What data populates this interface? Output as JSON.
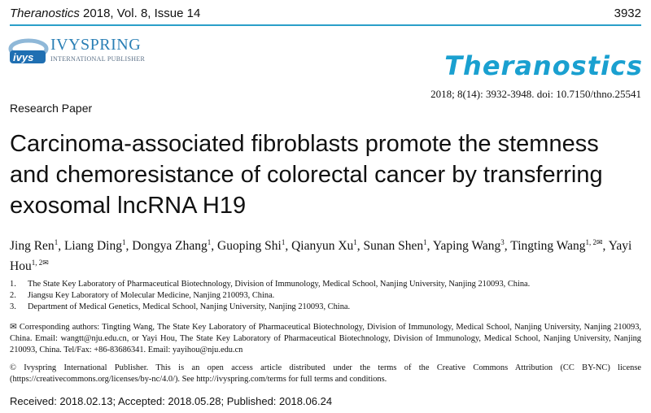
{
  "header": {
    "journal": "Theranostics",
    "issue": "2018, Vol. 8, Issue 14",
    "page": "3932"
  },
  "publisher": {
    "name": "IVYSPRING",
    "subtitle": "INTERNATIONAL PUBLISHER",
    "logo_text": "ivys"
  },
  "journal_logo": "Theranostics",
  "citation": "2018; 8(14): 3932-3948. doi: 10.7150/thno.25541",
  "article_type": "Research Paper",
  "title": "Carcinoma-associated fibroblasts promote the stemness and chemoresistance of colorectal cancer by transferring exosomal lncRNA H19",
  "authors": [
    {
      "name": "Jing Ren",
      "aff": "1"
    },
    {
      "name": "Liang Ding",
      "aff": "1"
    },
    {
      "name": "Dongya Zhang",
      "aff": "1"
    },
    {
      "name": "Guoping Shi",
      "aff": "1"
    },
    {
      "name": "Qianyun Xu",
      "aff": "1"
    },
    {
      "name": "Sunan Shen",
      "aff": "1"
    },
    {
      "name": "Yaping Wang",
      "aff": "3"
    },
    {
      "name": "Tingting Wang",
      "aff": "1, 2✉"
    },
    {
      "name": "Yayi Hou",
      "aff": "1, 2✉"
    }
  ],
  "affiliations": [
    {
      "num": "1.",
      "text": "The State Key Laboratory of Pharmaceutical Biotechnology, Division of Immunology, Medical School, Nanjing University, Nanjing 210093, China."
    },
    {
      "num": "2.",
      "text": "Jiangsu Key Laboratory of Molecular Medicine, Nanjing 210093, China."
    },
    {
      "num": "3.",
      "text": "Department of Medical Genetics, Medical School, Nanjing University, Nanjing 210093, China."
    }
  ],
  "corresponding": "✉ Corresponding authors: Tingting Wang, The State Key Laboratory of Pharmaceutical Biotechnology, Division of Immunology, Medical School, Nanjing University, Nanjing 210093, China. Email: wangtt@nju.edu.cn, or Yayi Hou, The State Key Laboratory of Pharmaceutical Biotechnology, Division of Immunology, Medical School, Nanjing University, Nanjing 210093, China. Tel/Fax: +86-83686341. Email: yayihou@nju.edu.cn",
  "license": "© Ivyspring International Publisher. This is an open access article distributed under the terms of the Creative Commons Attribution (CC BY-NC) license (https://creativecommons.org/licenses/by-nc/4.0/). See http://ivyspring.com/terms for full terms and conditions.",
  "dates": "Received: 2018.02.13; Accepted: 2018.05.28; Published: 2018.06.24",
  "colors": {
    "accent": "#2a9fc9",
    "logo": "#1aa0d0"
  }
}
